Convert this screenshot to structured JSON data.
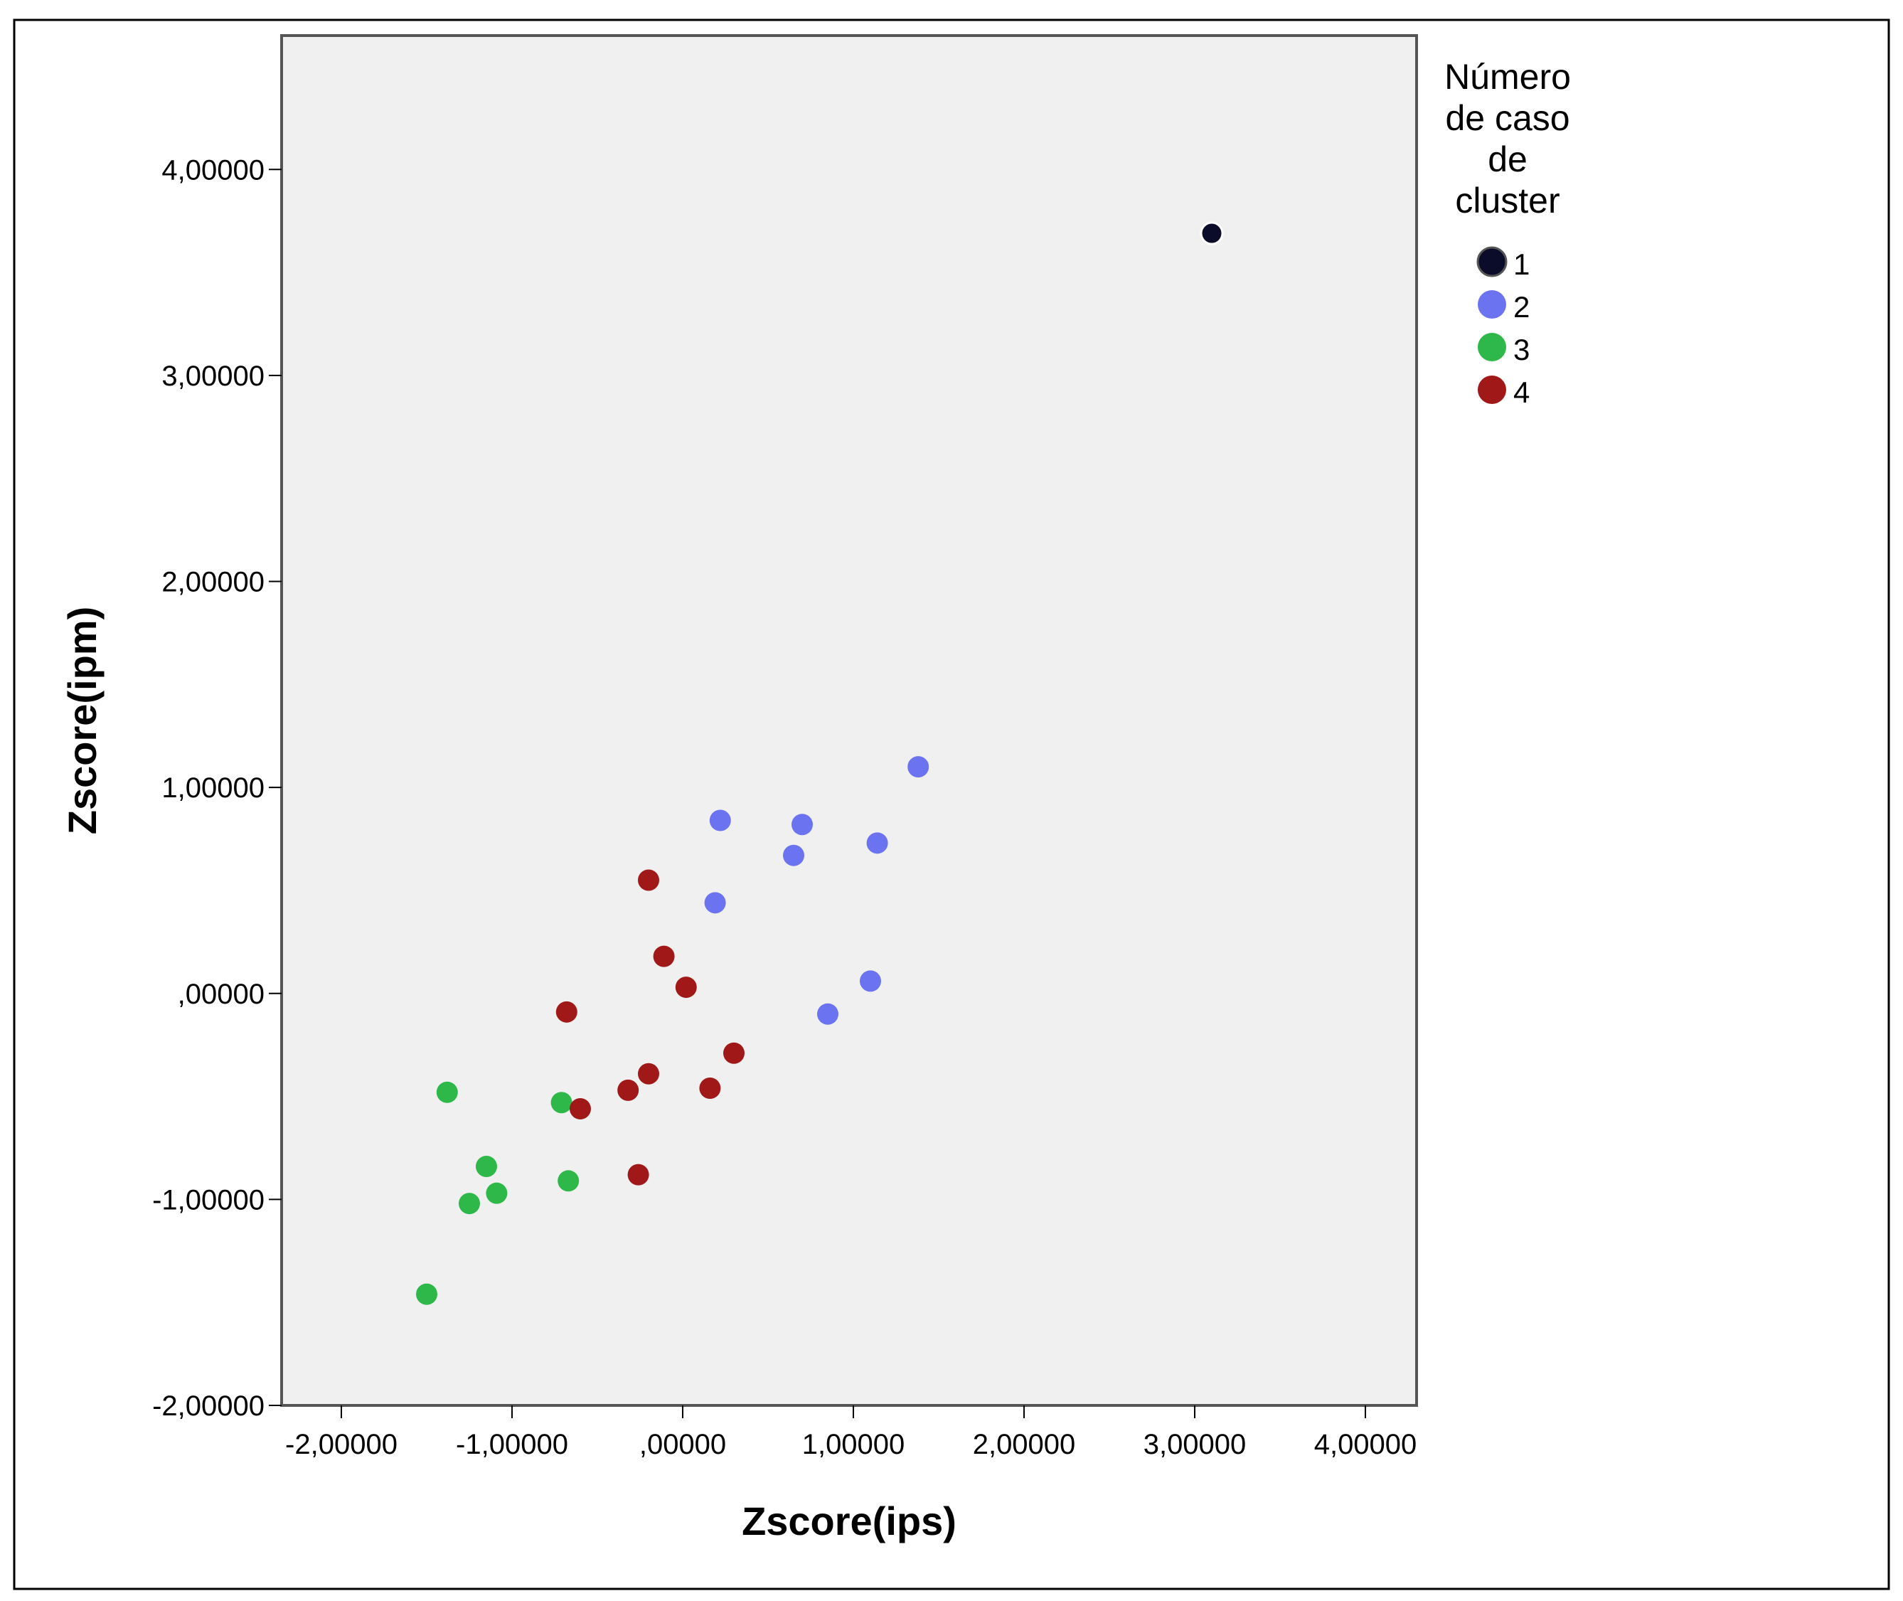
{
  "chart_data": {
    "type": "scatter",
    "xlabel": "Zscore(ips)",
    "ylabel": "Zscore(ipm)",
    "xlim": [
      -2.35,
      4.3
    ],
    "ylim": [
      -2.0,
      4.65
    ],
    "x_ticks": [
      "-2,00000",
      "-1,00000",
      ",00000",
      "1,00000",
      "2,00000",
      "3,00000",
      "4,00000"
    ],
    "y_ticks": [
      "4,00000",
      "3,00000",
      "2,00000",
      "1,00000",
      ",00000",
      "-1,00000",
      "-2,00000"
    ],
    "x_tick_values": [
      -2,
      -1,
      0,
      1,
      2,
      3,
      4
    ],
    "y_tick_values": [
      4,
      3,
      2,
      1,
      0,
      -1,
      -2
    ],
    "grid": false,
    "plot_background": "#f0f0f0",
    "legend": {
      "title_lines": [
        "Número",
        "de caso",
        "de",
        "cluster"
      ],
      "placement": "right"
    },
    "series": [
      {
        "name": "1",
        "color": "#0b0b2a",
        "points": [
          [
            3.1,
            3.69
          ]
        ]
      },
      {
        "name": "2",
        "color": "#6b73f0",
        "points": [
          [
            1.38,
            1.1
          ],
          [
            0.22,
            0.84
          ],
          [
            0.7,
            0.82
          ],
          [
            1.14,
            0.73
          ],
          [
            0.65,
            0.67
          ],
          [
            0.19,
            0.44
          ],
          [
            1.1,
            0.06
          ],
          [
            0.85,
            -0.1
          ]
        ]
      },
      {
        "name": "3",
        "color": "#2eb84a",
        "points": [
          [
            -1.38,
            -0.48
          ],
          [
            -0.71,
            -0.53
          ],
          [
            -1.15,
            -0.84
          ],
          [
            -0.67,
            -0.91
          ],
          [
            -1.09,
            -0.97
          ],
          [
            -1.25,
            -1.02
          ],
          [
            -1.5,
            -1.46
          ]
        ]
      },
      {
        "name": "4",
        "color": "#a01818",
        "points": [
          [
            -0.2,
            0.55
          ],
          [
            -0.11,
            0.18
          ],
          [
            0.02,
            0.03
          ],
          [
            -0.68,
            -0.09
          ],
          [
            0.3,
            -0.29
          ],
          [
            -0.2,
            -0.39
          ],
          [
            -0.32,
            -0.47
          ],
          [
            0.16,
            -0.46
          ],
          [
            -0.6,
            -0.56
          ],
          [
            -0.26,
            -0.88
          ]
        ]
      }
    ]
  }
}
